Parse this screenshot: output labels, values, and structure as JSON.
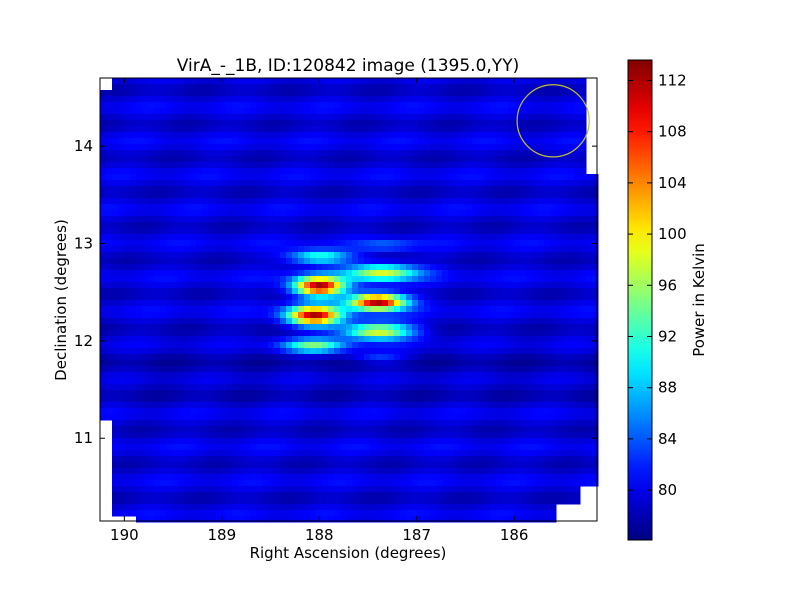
{
  "chart_data": {
    "type": "heatmap",
    "title": "VirA_-_1B, ID:120842 image (1395.0,YY)",
    "xlabel": "Right Ascension (degrees)",
    "ylabel": "Declination (degrees)",
    "xlim": [
      190.25,
      185.15
    ],
    "ylim": [
      10.15,
      14.7
    ],
    "x_ticks": [
      190,
      189,
      188,
      187,
      186
    ],
    "y_ticks": [
      11,
      12,
      13,
      14
    ],
    "grid": false,
    "colorbar": {
      "label": "Power in Kelvin",
      "colormap": "jet",
      "range": [
        76.1,
        113.6
      ],
      "ticks": [
        80,
        84,
        88,
        92,
        96,
        100,
        104,
        108,
        112
      ]
    },
    "background_level": 79.5,
    "sources": [
      {
        "ra": 188.0,
        "dec": 12.56,
        "peak": 112.5,
        "sigma_ra": 0.18,
        "sigma_dec": 0.07
      },
      {
        "ra": 188.05,
        "dec": 12.26,
        "peak": 111.0,
        "sigma_ra": 0.19,
        "sigma_dec": 0.07
      },
      {
        "ra": 187.4,
        "dec": 12.4,
        "peak": 113.0,
        "sigma_ra": 0.2,
        "sigma_dec": 0.06
      },
      {
        "ra": 187.35,
        "dec": 12.7,
        "peak": 98.0,
        "sigma_ra": 0.25,
        "sigma_dec": 0.06
      },
      {
        "ra": 187.4,
        "dec": 12.1,
        "peak": 100.0,
        "sigma_ra": 0.25,
        "sigma_dec": 0.06
      },
      {
        "ra": 188.0,
        "dec": 12.86,
        "peak": 93.0,
        "sigma_ra": 0.22,
        "sigma_dec": 0.05
      },
      {
        "ra": 188.05,
        "dec": 11.95,
        "peak": 94.0,
        "sigma_ra": 0.22,
        "sigma_dec": 0.05
      },
      {
        "ra": 187.3,
        "dec": 12.98,
        "peak": 84.0,
        "sigma_ra": 0.2,
        "sigma_dec": 0.04
      },
      {
        "ra": 187.4,
        "dec": 11.83,
        "peak": 84.0,
        "sigma_ra": 0.2,
        "sigma_dec": 0.04
      }
    ],
    "beam_circle": {
      "ra": 185.6,
      "dec": 14.26,
      "radius_deg": 0.37,
      "color": "#bfbf3f"
    }
  },
  "colors": {
    "beam_circle": "#bfbf3f"
  }
}
